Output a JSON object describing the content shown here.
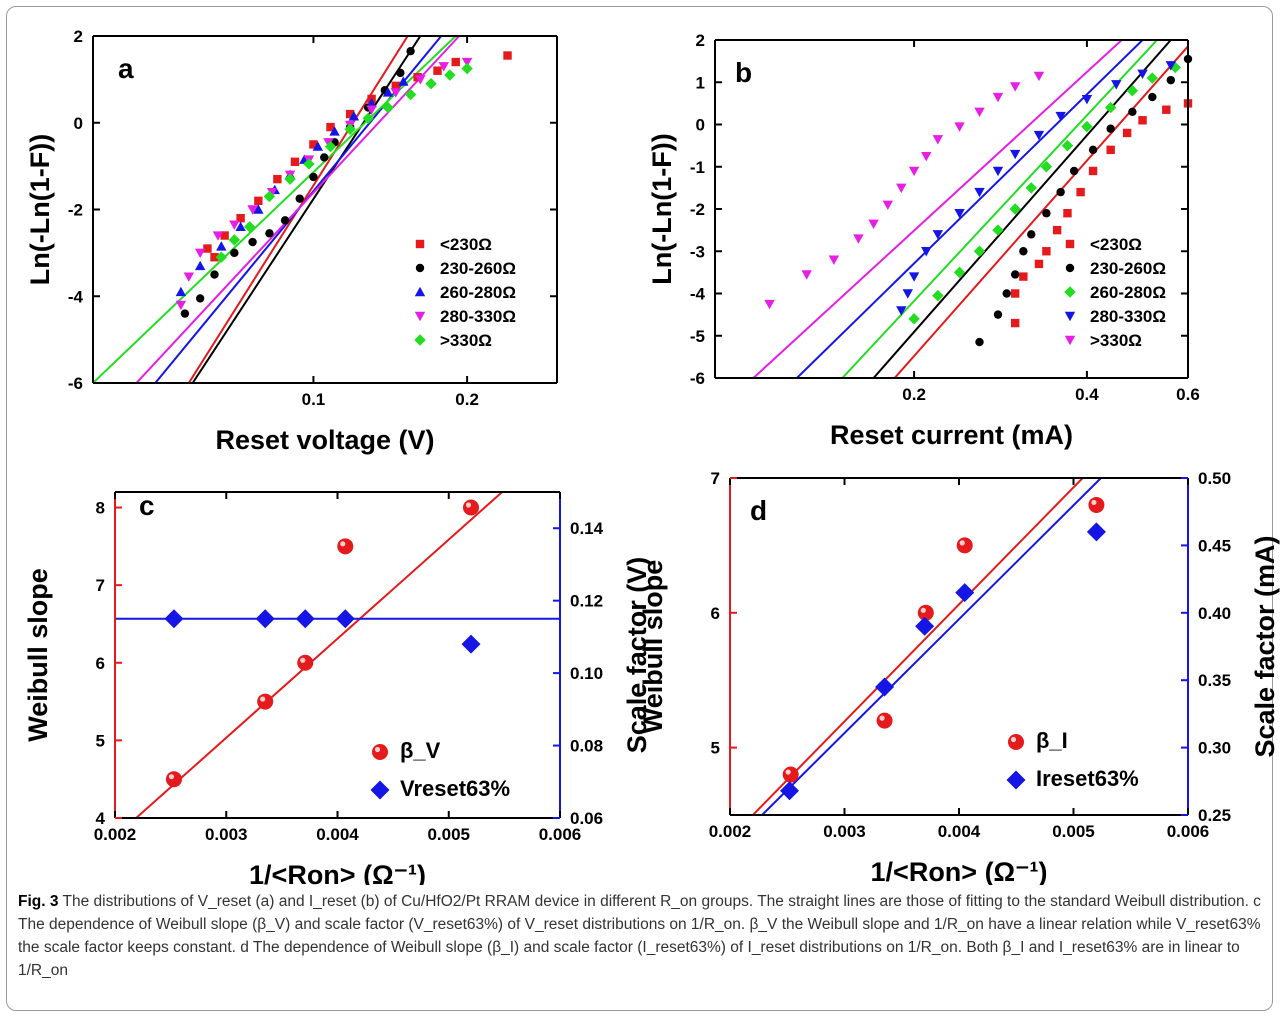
{
  "colors": {
    "red": "#e41a1c",
    "black": "#000000",
    "blue": "#1515e6",
    "magenta": "#e61ee6",
    "green": "#22dd22",
    "blue_axis": "#1515e6",
    "red_axis": "#e41a1c"
  },
  "caption": {
    "fig_label": "Fig. 3",
    "text": "The distributions of V_reset (a) and I_reset (b) of Cu/HfO2/Pt RRAM device in different R_on groups. The straight lines are those of fitting to the standard Weibull distribution. c The dependence of Weibull slope (β_V) and scale factor (V_reset63%) of V_reset distributions on 1/R_on. β_V the Weibull slope and 1/R_on have a linear relation while V_reset63% the scale factor keeps constant. d The dependence of Weibull slope (β_I) and scale factor (I_reset63%) of I_reset distributions on 1/R_on. Both β_I and I_reset63% are in linear to 1/R_on"
  },
  "chart_data": [
    {
      "panel": "a",
      "type": "scatter",
      "xlabel": "Reset voltage (V)",
      "ylabel": "Ln(-Ln(1-F))",
      "xscale": "log",
      "xlim": [
        0.037,
        0.3
      ],
      "ylim": [
        -6,
        2
      ],
      "xticks": [
        0.1,
        0.2
      ],
      "yticks": [
        -6,
        -4,
        -2,
        0,
        2
      ],
      "legend_position": "lower-right",
      "series": [
        {
          "name": "<230Ω",
          "marker": "square",
          "color": "#e41a1c",
          "points": [
            [
              0.062,
              -2.9
            ],
            [
              0.064,
              -3.1
            ],
            [
              0.067,
              -2.6
            ],
            [
              0.072,
              -2.2
            ],
            [
              0.078,
              -1.8
            ],
            [
              0.085,
              -1.3
            ],
            [
              0.092,
              -0.9
            ],
            [
              0.1,
              -0.5
            ],
            [
              0.108,
              -0.1
            ],
            [
              0.118,
              0.2
            ],
            [
              0.13,
              0.55
            ],
            [
              0.145,
              0.85
            ],
            [
              0.16,
              1.05
            ],
            [
              0.175,
              1.2
            ],
            [
              0.19,
              1.4
            ],
            [
              0.24,
              1.55
            ]
          ],
          "fit": [
            [
              0.057,
              -6
            ],
            [
              0.153,
              2
            ]
          ]
        },
        {
          "name": "230-260Ω",
          "marker": "circle",
          "color": "#000000",
          "points": [
            [
              0.056,
              -4.4
            ],
            [
              0.06,
              -4.05
            ],
            [
              0.064,
              -3.5
            ],
            [
              0.07,
              -3.0
            ],
            [
              0.076,
              -2.75
            ],
            [
              0.082,
              -2.55
            ],
            [
              0.088,
              -2.25
            ],
            [
              0.094,
              -1.75
            ],
            [
              0.1,
              -1.25
            ],
            [
              0.105,
              -0.8
            ],
            [
              0.11,
              -0.45
            ],
            [
              0.118,
              -0.1
            ],
            [
              0.128,
              0.35
            ],
            [
              0.138,
              0.75
            ],
            [
              0.148,
              1.15
            ],
            [
              0.155,
              1.65
            ]
          ],
          "fit": [
            [
              0.058,
              -6
            ],
            [
              0.162,
              2
            ]
          ]
        },
        {
          "name": "260-280Ω",
          "marker": "triangle-up",
          "color": "#1515e6",
          "points": [
            [
              0.055,
              -3.9
            ],
            [
              0.06,
              -3.3
            ],
            [
              0.066,
              -2.85
            ],
            [
              0.072,
              -2.4
            ],
            [
              0.078,
              -2.0
            ],
            [
              0.084,
              -1.55
            ],
            [
              0.09,
              -1.2
            ],
            [
              0.096,
              -0.85
            ],
            [
              0.102,
              -0.55
            ],
            [
              0.11,
              -0.2
            ],
            [
              0.12,
              0.15
            ],
            [
              0.13,
              0.45
            ],
            [
              0.14,
              0.7
            ],
            [
              0.15,
              0.95
            ]
          ],
          "fit": [
            [
              0.049,
              -6
            ],
            [
              0.178,
              2
            ]
          ]
        },
        {
          "name": "280-330Ω",
          "marker": "triangle-down",
          "color": "#e61ee6",
          "points": [
            [
              0.055,
              -4.2
            ],
            [
              0.057,
              -3.55
            ],
            [
              0.06,
              -3.0
            ],
            [
              0.065,
              -2.6
            ],
            [
              0.07,
              -2.35
            ],
            [
              0.076,
              -2.0
            ],
            [
              0.083,
              -1.6
            ],
            [
              0.09,
              -1.2
            ],
            [
              0.098,
              -0.85
            ],
            [
              0.107,
              -0.45
            ],
            [
              0.118,
              -0.05
            ],
            [
              0.13,
              0.3
            ],
            [
              0.145,
              0.7
            ],
            [
              0.162,
              1.0
            ],
            [
              0.18,
              1.3
            ],
            [
              0.2,
              1.4
            ]
          ],
          "fit": [
            [
              0.045,
              -6
            ],
            [
              0.193,
              2
            ]
          ]
        },
        {
          "name": ">330Ω",
          "marker": "diamond",
          "color": "#22dd22",
          "points": [
            [
              0.066,
              -3.1
            ],
            [
              0.07,
              -2.7
            ],
            [
              0.075,
              -2.4
            ],
            [
              0.082,
              -1.7
            ],
            [
              0.09,
              -1.3
            ],
            [
              0.098,
              -0.95
            ],
            [
              0.108,
              -0.55
            ],
            [
              0.118,
              -0.15
            ],
            [
              0.128,
              0.1
            ],
            [
              0.14,
              0.35
            ],
            [
              0.155,
              0.65
            ],
            [
              0.17,
              0.9
            ],
            [
              0.185,
              1.1
            ],
            [
              0.2,
              1.25
            ]
          ],
          "fit": [
            [
              0.037,
              -6
            ],
            [
              0.19,
              2
            ]
          ]
        }
      ]
    },
    {
      "panel": "b",
      "type": "scatter",
      "xlabel": "Reset current (mA)",
      "ylabel": "Ln(-Ln(1-F))",
      "xscale": "log",
      "xlim": [
        0.09,
        0.6
      ],
      "ylim": [
        -6,
        2
      ],
      "xticks": [
        0.2,
        0.4,
        0.6
      ],
      "yticks": [
        -6,
        -5,
        -4,
        -3,
        -2,
        -1,
        0,
        1,
        2
      ],
      "legend_position": "lower-right",
      "series": [
        {
          "name": "<230Ω",
          "marker": "square",
          "color": "#e41a1c",
          "points": [
            [
              0.3,
              -4.7
            ],
            [
              0.3,
              -4.0
            ],
            [
              0.31,
              -3.6
            ],
            [
              0.33,
              -3.3
            ],
            [
              0.34,
              -3.0
            ],
            [
              0.355,
              -2.5
            ],
            [
              0.37,
              -2.1
            ],
            [
              0.39,
              -1.6
            ],
            [
              0.41,
              -1.1
            ],
            [
              0.44,
              -0.6
            ],
            [
              0.47,
              -0.2
            ],
            [
              0.5,
              0.1
            ],
            [
              0.55,
              0.35
            ],
            [
              0.6,
              0.5
            ]
          ],
          "fit": [
            [
              0.185,
              -6
            ],
            [
              0.6,
              1.85
            ]
          ]
        },
        {
          "name": "230-260Ω",
          "marker": "circle",
          "color": "#000000",
          "points": [
            [
              0.26,
              -5.15
            ],
            [
              0.28,
              -4.5
            ],
            [
              0.29,
              -4.0
            ],
            [
              0.3,
              -3.55
            ],
            [
              0.31,
              -3.0
            ],
            [
              0.32,
              -2.6
            ],
            [
              0.34,
              -2.1
            ],
            [
              0.36,
              -1.6
            ],
            [
              0.38,
              -1.1
            ],
            [
              0.41,
              -0.6
            ],
            [
              0.44,
              -0.1
            ],
            [
              0.48,
              0.3
            ],
            [
              0.52,
              0.65
            ],
            [
              0.56,
              1.05
            ],
            [
              0.6,
              1.55
            ]
          ],
          "fit": [
            [
              0.17,
              -6
            ],
            [
              0.56,
              2
            ]
          ]
        },
        {
          "name": "260-280Ω",
          "marker": "diamond",
          "color": "#22dd22",
          "points": [
            [
              0.2,
              -4.6
            ],
            [
              0.22,
              -4.05
            ],
            [
              0.24,
              -3.5
            ],
            [
              0.26,
              -3.0
            ],
            [
              0.28,
              -2.5
            ],
            [
              0.3,
              -2.0
            ],
            [
              0.32,
              -1.5
            ],
            [
              0.34,
              -1.0
            ],
            [
              0.37,
              -0.5
            ],
            [
              0.4,
              -0.05
            ],
            [
              0.44,
              0.4
            ],
            [
              0.48,
              0.8
            ],
            [
              0.52,
              1.1
            ],
            [
              0.57,
              1.35
            ]
          ],
          "fit": [
            [
              0.15,
              -6
            ],
            [
              0.53,
              2
            ]
          ]
        },
        {
          "name": "280-330Ω",
          "marker": "triangle-down",
          "color": "#1515e6",
          "points": [
            [
              0.19,
              -4.4
            ],
            [
              0.195,
              -4.0
            ],
            [
              0.2,
              -3.6
            ],
            [
              0.21,
              -3.0
            ],
            [
              0.22,
              -2.6
            ],
            [
              0.24,
              -2.1
            ],
            [
              0.26,
              -1.6
            ],
            [
              0.28,
              -1.1
            ],
            [
              0.3,
              -0.7
            ],
            [
              0.33,
              -0.25
            ],
            [
              0.36,
              0.2
            ],
            [
              0.4,
              0.6
            ],
            [
              0.45,
              0.95
            ],
            [
              0.5,
              1.2
            ],
            [
              0.56,
              1.4
            ]
          ],
          "fit": [
            [
              0.125,
              -6
            ],
            [
              0.5,
              2
            ]
          ]
        },
        {
          "name": ">330Ω",
          "marker": "triangle-down",
          "color": "#e61ee6",
          "points": [
            [
              0.112,
              -4.25
            ],
            [
              0.13,
              -3.55
            ],
            [
              0.145,
              -3.2
            ],
            [
              0.16,
              -2.7
            ],
            [
              0.17,
              -2.35
            ],
            [
              0.18,
              -1.9
            ],
            [
              0.19,
              -1.5
            ],
            [
              0.2,
              -1.1
            ],
            [
              0.21,
              -0.75
            ],
            [
              0.22,
              -0.35
            ],
            [
              0.24,
              -0.05
            ],
            [
              0.26,
              0.3
            ],
            [
              0.28,
              0.65
            ],
            [
              0.3,
              0.9
            ],
            [
              0.33,
              1.15
            ]
          ],
          "fit": [
            [
              0.105,
              -6
            ],
            [
              0.46,
              2
            ]
          ]
        }
      ]
    },
    {
      "panel": "c",
      "type": "scatter",
      "xlabel": "1/<Ron> (Ω⁻¹)",
      "ylabel": "Weibull slope",
      "y2label": "Scale factor (V)",
      "xlim": [
        0.002,
        0.006
      ],
      "ylim": [
        4,
        8.2
      ],
      "y2lim": [
        0.06,
        0.15
      ],
      "xticks": [
        0.002,
        0.003,
        0.004,
        0.005,
        0.006
      ],
      "yticks": [
        4,
        5,
        6,
        7,
        8
      ],
      "y2ticks": [
        0.06,
        0.08,
        0.1,
        0.12,
        0.14
      ],
      "legend_position": "lower-right",
      "series": [
        {
          "name": "β_V",
          "axis": "left",
          "marker": "sphere",
          "color": "#e41a1c",
          "points": [
            [
              0.00253,
              4.5
            ],
            [
              0.00335,
              5.5
            ],
            [
              0.00371,
              6.0
            ],
            [
              0.00407,
              7.5
            ],
            [
              0.0052,
              8.0
            ]
          ],
          "fit": [
            [
              0.00219,
              4.0
            ],
            [
              0.00548,
              8.2
            ]
          ]
        },
        {
          "name": "Vreset63%",
          "axis": "right",
          "marker": "diamond",
          "color": "#1515e6",
          "points": [
            [
              0.00253,
              0.115
            ],
            [
              0.00335,
              0.115
            ],
            [
              0.00371,
              0.115
            ],
            [
              0.00407,
              0.115
            ],
            [
              0.0052,
              0.108
            ]
          ],
          "fit": [
            [
              0.002,
              0.115
            ],
            [
              0.006,
              0.115
            ]
          ]
        }
      ]
    },
    {
      "panel": "d",
      "type": "scatter",
      "xlabel": "1/<Ron> (Ω⁻¹)",
      "ylabel": "Weibull slope",
      "y2label": "Scale factor (mA)",
      "xlim": [
        0.002,
        0.006
      ],
      "ylim": [
        4.5,
        7
      ],
      "y2lim": [
        0.25,
        0.5
      ],
      "xticks": [
        0.002,
        0.003,
        0.004,
        0.005,
        0.006
      ],
      "yticks": [
        5,
        6,
        7
      ],
      "y2ticks": [
        0.25,
        0.3,
        0.35,
        0.4,
        0.45,
        0.5
      ],
      "legend_position": "lower-right",
      "series": [
        {
          "name": "β_I",
          "axis": "left",
          "marker": "sphere",
          "color": "#e41a1c",
          "points": [
            [
              0.00253,
              4.8
            ],
            [
              0.00335,
              5.2
            ],
            [
              0.00371,
              6.0
            ],
            [
              0.00405,
              6.5
            ],
            [
              0.0052,
              6.8
            ]
          ],
          "fit": [
            [
              0.0022,
              4.5
            ],
            [
              0.00508,
              7.0
            ]
          ]
        },
        {
          "name": "Ireset63%",
          "axis": "right",
          "marker": "diamond",
          "color": "#1515e6",
          "points": [
            [
              0.00252,
              0.268
            ],
            [
              0.00335,
              0.345
            ],
            [
              0.0037,
              0.39
            ],
            [
              0.00405,
              0.415
            ],
            [
              0.0052,
              0.46
            ]
          ],
          "fit": [
            [
              0.00228,
              0.25
            ],
            [
              0.00524,
              0.5
            ]
          ]
        }
      ]
    }
  ]
}
